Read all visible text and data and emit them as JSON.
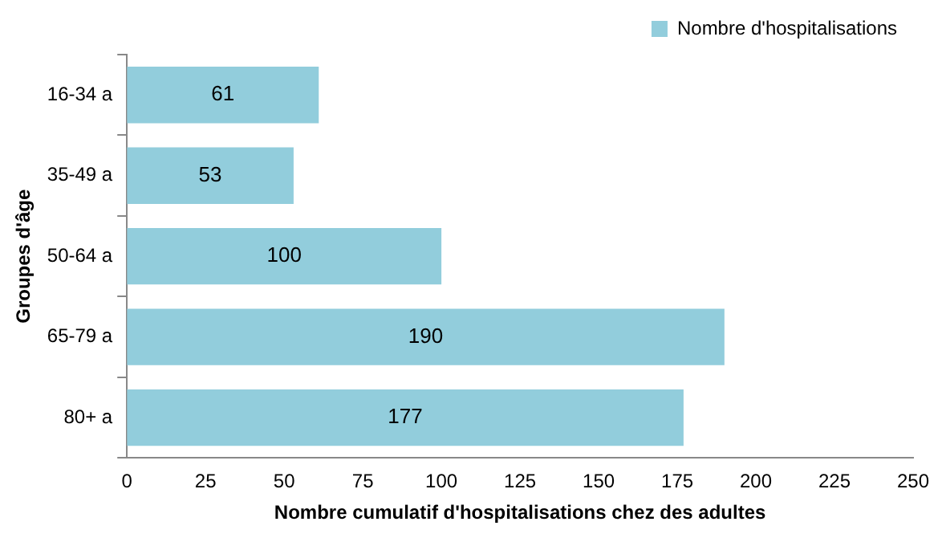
{
  "chart_data": {
    "type": "bar",
    "orientation": "horizontal",
    "xlabel": "Nombre cumulatif d'hospitalisations chez des adultes",
    "ylabel": "Groupes d'âge",
    "categories": [
      "16-34 a",
      "35-49 a",
      "50-64 a",
      "65-79 a",
      "80+ a"
    ],
    "series": [
      {
        "name": "Nombre d'hospitalisations",
        "color": "#92cddc",
        "values": [
          61,
          53,
          100,
          190,
          177
        ]
      }
    ],
    "xlim": [
      0,
      250
    ],
    "xticks": [
      0,
      25,
      50,
      75,
      100,
      125,
      150,
      175,
      200,
      225,
      250
    ],
    "grid": false,
    "legend": "top right",
    "data_labels": true
  }
}
